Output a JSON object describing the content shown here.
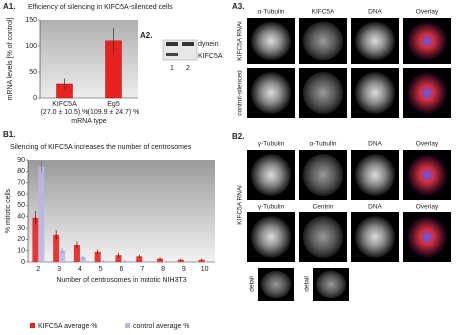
{
  "labels": {
    "a1": "A1.",
    "a2": "A2.",
    "a3": "A3.",
    "b1": "B1.",
    "b2": "B2."
  },
  "a2": {
    "bands": [
      "dynein",
      "KIFC5A"
    ],
    "lanes": [
      "1",
      "2"
    ]
  },
  "a3": {
    "columns": [
      "α-Tubulin",
      "KIFC5A",
      "DNA",
      "Overlay"
    ],
    "rows": [
      "KIFC5A RNAi",
      "control-silenced"
    ]
  },
  "b2": {
    "columns_top": [
      "γ-Tubulin",
      "α-Tubulin",
      "DNA",
      "Overlay"
    ],
    "columns_bottom": [
      "γ-Tubulin",
      "Centrin",
      "DNA",
      "Overlay"
    ],
    "row_label": "KIFC5A RNAi",
    "details": [
      "detail",
      "detail"
    ]
  },
  "chart_data": [
    {
      "type": "bar",
      "title": "Efficiency of silencing in KIFC5A-silenced cells",
      "x_label": "mRNA type",
      "y_label": "mRNA levels [% of control]",
      "categories": [
        "KIFC5A",
        "Eg5"
      ],
      "values": [
        27.0,
        109.9
      ],
      "errors": [
        10.5,
        24.7
      ],
      "value_labels": [
        "(27.0 ± 10.5) %",
        "(109.9 ± 24.7) %"
      ],
      "color": "#e8231f",
      "ylim": [
        0,
        150
      ],
      "yticks": [
        0,
        50,
        100,
        150
      ]
    },
    {
      "type": "grouped-bar",
      "title": "Silencing of KIFC5A increases the number of centrosomes",
      "x_label": "Number of centrosomes in mitotic NIH3T3",
      "y_label": "% mitotic cells",
      "categories": [
        "2",
        "3",
        "4",
        "5",
        "6",
        "7",
        "8",
        "9",
        "10"
      ],
      "series": [
        {
          "name": "KIFC5A average %",
          "color": "#e8231f",
          "values": [
            39,
            24,
            15,
            9,
            6,
            5,
            3,
            2,
            2
          ],
          "errors": [
            6,
            4,
            3,
            2,
            2,
            1.5,
            1,
            1,
            1
          ]
        },
        {
          "name": "control average %",
          "color": "#b8b8e2",
          "values": [
            84,
            10,
            4,
            1,
            1,
            0.5,
            0.3,
            0.2,
            0.2
          ],
          "errors": [
            5,
            2,
            1.5,
            0.5,
            0.5,
            0.3,
            0.2,
            0.1,
            0.1
          ]
        }
      ],
      "ylim": [
        0,
        90
      ],
      "yticks": [
        0,
        10,
        20,
        30,
        40,
        50,
        60,
        70,
        80,
        90
      ],
      "legend": "bottom"
    }
  ]
}
